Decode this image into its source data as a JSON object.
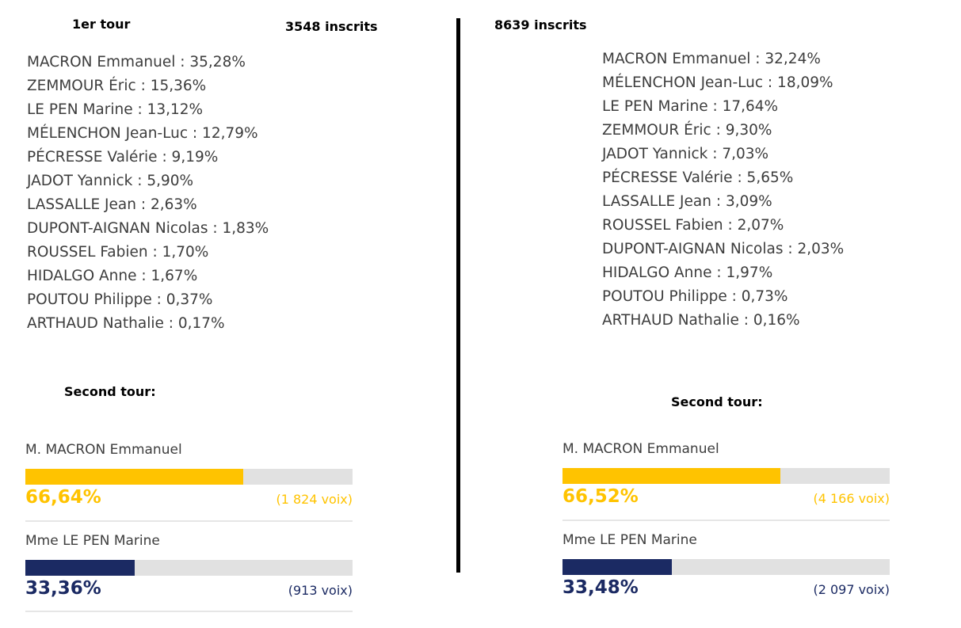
{
  "left": {
    "round1_label": "1er tour",
    "registered": "3548 inscrits",
    "first_round": [
      "MACRON Emmanuel : 35,28%",
      "ZEMMOUR Éric : 15,36%",
      "LE PEN Marine : 13,12%",
      "MÉLENCHON Jean-Luc : 12,79%",
      "PÉCRESSE Valérie : 9,19%",
      "JADOT Yannick : 5,90%",
      "LASSALLE Jean : 2,63%",
      "DUPONT-AIGNAN Nicolas : 1,83%",
      "ROUSSEL Fabien : 1,70%",
      "HIDALGO Anne : 1,67%",
      "POUTOU Philippe : 0,37%",
      "ARTHAUD Nathalie : 0,17%"
    ],
    "second_round_label": "Second tour:",
    "second_round": [
      {
        "name": "M. MACRON Emmanuel",
        "percent": "66,64%",
        "votes": "(1 824 voix)",
        "fill": 0.6664,
        "color": "#ffc300"
      },
      {
        "name": "Mme LE PEN Marine",
        "percent": "33,36%",
        "votes": "(913 voix)",
        "fill": 0.3336,
        "color": "#1b2a63"
      }
    ]
  },
  "right": {
    "registered": "8639 inscrits",
    "first_round": [
      "MACRON Emmanuel : 32,24%",
      "MÉLENCHON Jean-Luc : 18,09%",
      "LE PEN Marine : 17,64%",
      "ZEMMOUR Éric : 9,30%",
      "JADOT Yannick : 7,03%",
      "PÉCRESSE Valérie : 5,65%",
      "LASSALLE Jean : 3,09%",
      "ROUSSEL Fabien : 2,07%",
      "DUPONT-AIGNAN Nicolas : 2,03%",
      "HIDALGO Anne : 1,97%",
      "POUTOU Philippe : 0,73%",
      "ARTHAUD Nathalie : 0,16%"
    ],
    "second_round_label": "Second tour:",
    "second_round": [
      {
        "name": "M. MACRON Emmanuel",
        "percent": "66,52%",
        "votes": "(4 166 voix)",
        "fill": 0.6652,
        "color": "#ffc300"
      },
      {
        "name": "Mme LE PEN Marine",
        "percent": "33,48%",
        "votes": "(2 097 voix)",
        "fill": 0.3348,
        "color": "#1b2a63"
      }
    ]
  }
}
